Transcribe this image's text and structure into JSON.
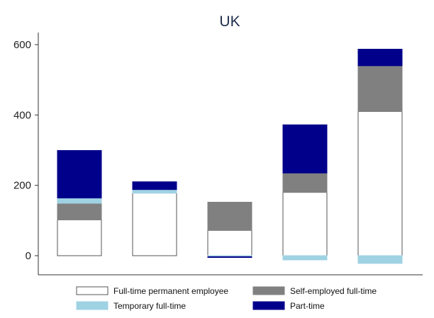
{
  "chart_data": {
    "type": "bar",
    "stacked": true,
    "title": "UK",
    "xlabel": "",
    "ylabel": "",
    "ylim": [
      -30,
      620
    ],
    "yticks": [
      0,
      200,
      400,
      600
    ],
    "categories": [
      "",
      "",
      "",
      "",
      ""
    ],
    "series": [
      {
        "name": "Full-time permanent employee",
        "values": [
          102,
          178,
          72,
          180,
          410
        ],
        "color": "#ffffff",
        "stroke": "#555555"
      },
      {
        "name": "Self-employed full-time",
        "values": [
          47,
          0,
          80,
          55,
          130
        ],
        "color": "#808080",
        "stroke": "#808080"
      },
      {
        "name": "Temporary full-time",
        "values": [
          15,
          10,
          -3,
          -12,
          -22
        ],
        "color": "#9fd2e3",
        "stroke": "#9fd2e3"
      },
      {
        "name": "Part-time",
        "values": [
          135,
          22,
          -2,
          137,
          47
        ],
        "color": "#00008b",
        "stroke": "#00008b"
      }
    ],
    "legend": {
      "position": "bottom",
      "columns": 2,
      "order": [
        0,
        1,
        2,
        3
      ]
    },
    "grid": false
  }
}
